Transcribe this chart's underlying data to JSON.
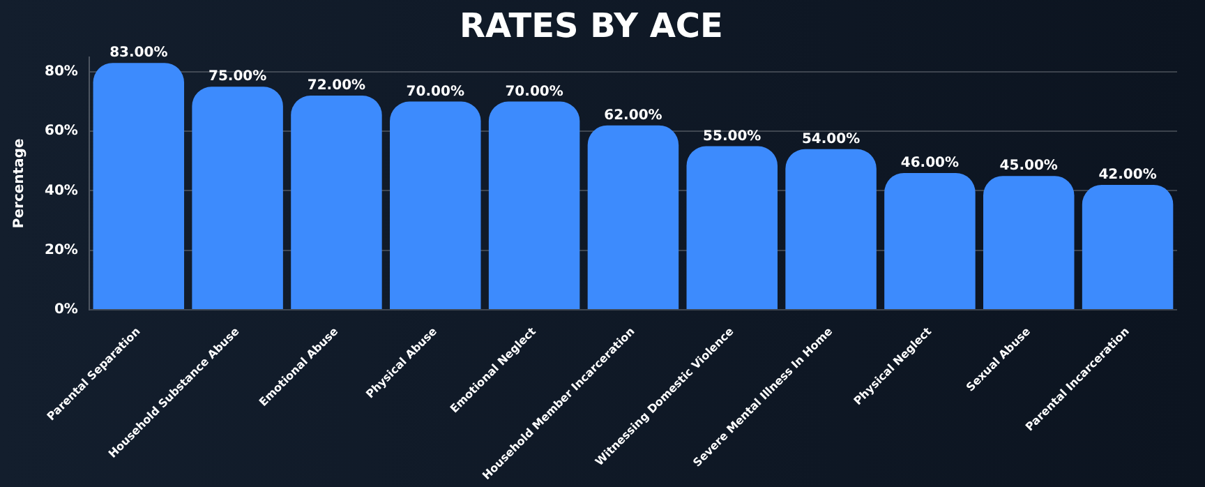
{
  "chart_data": {
    "type": "bar",
    "title": "RATES BY ACE",
    "ylabel": "Percentage",
    "categories": [
      "Parental Separation",
      "Household Substance Abuse",
      "Emotional Abuse",
      "Physical Abuse",
      "Emotional Neglect",
      "Household Member Incarceration",
      "Witnessing Domestic Violence",
      "Severe Mental Illness In Home",
      "Physical Neglect",
      "Sexual Abuse",
      "Parental Incarceration"
    ],
    "values": [
      83,
      75,
      72,
      70,
      70,
      62,
      55,
      54,
      46,
      45,
      42
    ],
    "value_labels": [
      "83.00%",
      "75.00%",
      "72.00%",
      "70.00%",
      "70.00%",
      "62.00%",
      "55.00%",
      "54.00%",
      "46.00%",
      "45.00%",
      "42.00%"
    ],
    "color": "#3d8bfd",
    "ylim": [
      0,
      85
    ],
    "yticks": [
      {
        "value": 0,
        "label": "0%"
      },
      {
        "value": 20,
        "label": "20%"
      },
      {
        "value": 40,
        "label": "40%"
      },
      {
        "value": 60,
        "label": "60%"
      },
      {
        "value": 80,
        "label": "80%"
      }
    ],
    "grid": "y",
    "legend": false
  }
}
